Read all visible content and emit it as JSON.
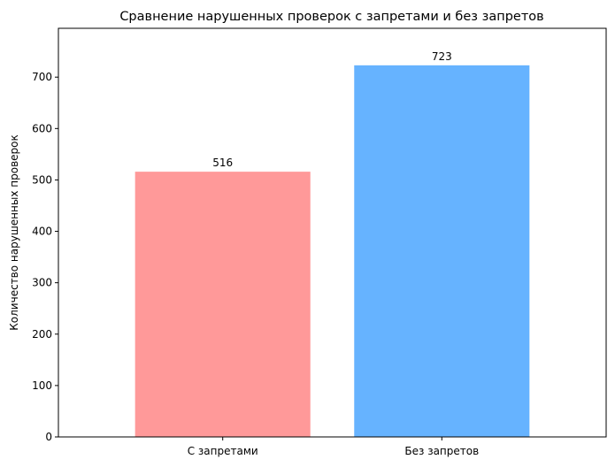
{
  "chart_data": {
    "type": "bar",
    "title": "Сравнение нарушенных проверок с запретами и без запретов",
    "xlabel": "",
    "ylabel": "Количество нарушенных проверок",
    "categories": [
      "С запретами",
      "Без запретов"
    ],
    "values": [
      516,
      723
    ],
    "data_labels": [
      "516",
      "723"
    ],
    "colors": [
      "#ff9999",
      "#66b3ff"
    ],
    "ylim": [
      0,
      795
    ],
    "yticks": [
      0,
      100,
      200,
      300,
      400,
      500,
      600,
      700
    ],
    "ytick_labels": [
      "0",
      "100",
      "200",
      "300",
      "400",
      "500",
      "600",
      "700"
    ],
    "grid": false,
    "legend": "none"
  }
}
